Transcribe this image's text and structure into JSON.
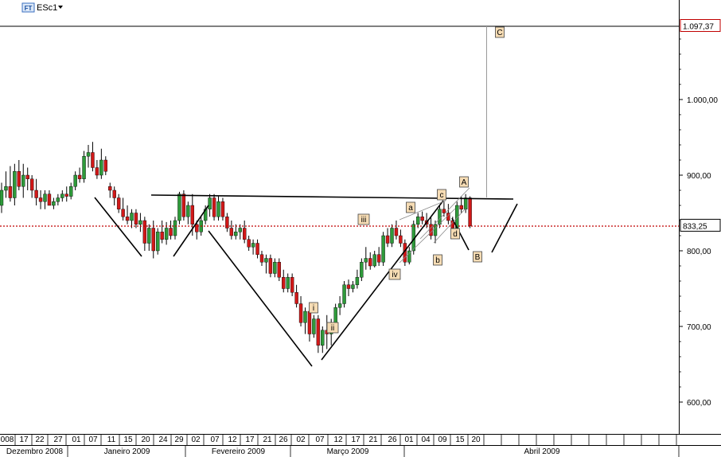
{
  "header": {
    "badge": "FT",
    "symbol": "ESc1",
    "dropdown_icon": "triangle-down-icon"
  },
  "chart_data": {
    "type": "candlestick",
    "title": "ESc1",
    "ylim": [
      560,
      1100
    ],
    "y_ticks": [
      {
        "value": 600,
        "label": "600,00"
      },
      {
        "value": 700,
        "label": "700,00"
      },
      {
        "value": 800,
        "label": "800,00"
      },
      {
        "value": 900,
        "label": "900,00"
      },
      {
        "value": 1000,
        "label": "1.000,00"
      }
    ],
    "x_dates": [
      "008",
      "17",
      "22",
      "27",
      "01",
      "07",
      "11",
      "15",
      "20",
      "24",
      "29",
      "02",
      "07",
      "12",
      "17",
      "21",
      "26",
      "02",
      "07",
      "12",
      "17",
      "21",
      "26",
      "01",
      "04",
      "09",
      "15",
      "20"
    ],
    "x_months": [
      "Dezembro 2008",
      "Janeiro 2009",
      "Fevereiro 2009",
      "Março 2009",
      "Abril 2009"
    ],
    "current_price": {
      "value": 833.25,
      "label": "833,25"
    },
    "target_line": {
      "value": 1097.37,
      "label": "1.097,37"
    },
    "neckline": [
      {
        "i": 42,
        "y": 875
      },
      {
        "i": 141,
        "y": 871
      }
    ],
    "wave_labels": [
      "i",
      "ii",
      "iii",
      "iv",
      "a",
      "b",
      "c",
      "d",
      "A",
      "B",
      "C"
    ],
    "colors": {
      "up": "#2e9a3a",
      "down": "#d11818",
      "wick": "#000000",
      "label_bg": "#f6dcb4",
      "price_line": "#c00000"
    },
    "candles": [
      {
        "o": 860,
        "h": 890,
        "l": 850,
        "c": 880
      },
      {
        "o": 880,
        "h": 905,
        "l": 870,
        "c": 885
      },
      {
        "o": 885,
        "h": 912,
        "l": 865,
        "c": 870
      },
      {
        "o": 870,
        "h": 915,
        "l": 860,
        "c": 905
      },
      {
        "o": 905,
        "h": 920,
        "l": 880,
        "c": 885
      },
      {
        "o": 885,
        "h": 915,
        "l": 870,
        "c": 900
      },
      {
        "o": 900,
        "h": 910,
        "l": 880,
        "c": 895
      },
      {
        "o": 895,
        "h": 900,
        "l": 870,
        "c": 880
      },
      {
        "o": 880,
        "h": 895,
        "l": 860,
        "c": 870
      },
      {
        "o": 870,
        "h": 880,
        "l": 855,
        "c": 865
      },
      {
        "o": 865,
        "h": 880,
        "l": 855,
        "c": 875
      },
      {
        "o": 875,
        "h": 880,
        "l": 860,
        "c": 860
      },
      {
        "o": 860,
        "h": 870,
        "l": 855,
        "c": 865
      },
      {
        "o": 865,
        "h": 875,
        "l": 860,
        "c": 870
      },
      {
        "o": 870,
        "h": 880,
        "l": 865,
        "c": 875
      },
      {
        "o": 875,
        "h": 885,
        "l": 865,
        "c": 872
      },
      {
        "o": 872,
        "h": 890,
        "l": 868,
        "c": 885
      },
      {
        "o": 885,
        "h": 905,
        "l": 880,
        "c": 900
      },
      {
        "o": 900,
        "h": 910,
        "l": 890,
        "c": 895
      },
      {
        "o": 895,
        "h": 932,
        "l": 890,
        "c": 925
      },
      {
        "o": 925,
        "h": 940,
        "l": 910,
        "c": 930
      },
      {
        "o": 930,
        "h": 944,
        "l": 905,
        "c": 910
      },
      {
        "o": 910,
        "h": 920,
        "l": 895,
        "c": 900
      },
      {
        "o": 900,
        "h": 935,
        "l": 895,
        "c": 920
      },
      {
        "o": 920,
        "h": 925,
        "l": 900,
        "c": 905
      },
      {
        "o": 885,
        "h": 890,
        "l": 870,
        "c": 880
      },
      {
        "o": 880,
        "h": 885,
        "l": 860,
        "c": 870
      },
      {
        "o": 870,
        "h": 875,
        "l": 850,
        "c": 855
      },
      {
        "o": 855,
        "h": 870,
        "l": 840,
        "c": 845
      },
      {
        "o": 845,
        "h": 860,
        "l": 835,
        "c": 840
      },
      {
        "o": 840,
        "h": 855,
        "l": 830,
        "c": 850
      },
      {
        "o": 850,
        "h": 855,
        "l": 830,
        "c": 835
      },
      {
        "o": 835,
        "h": 850,
        "l": 825,
        "c": 840
      },
      {
        "o": 840,
        "h": 845,
        "l": 800,
        "c": 810
      },
      {
        "o": 810,
        "h": 835,
        "l": 800,
        "c": 830
      },
      {
        "o": 830,
        "h": 840,
        "l": 790,
        "c": 800
      },
      {
        "o": 800,
        "h": 830,
        "l": 795,
        "c": 825
      },
      {
        "o": 825,
        "h": 840,
        "l": 810,
        "c": 815
      },
      {
        "o": 815,
        "h": 838,
        "l": 808,
        "c": 830
      },
      {
        "o": 830,
        "h": 840,
        "l": 815,
        "c": 820
      },
      {
        "o": 820,
        "h": 845,
        "l": 815,
        "c": 840
      },
      {
        "o": 840,
        "h": 878,
        "l": 835,
        "c": 875
      },
      {
        "o": 875,
        "h": 880,
        "l": 840,
        "c": 845
      },
      {
        "o": 845,
        "h": 865,
        "l": 835,
        "c": 860
      },
      {
        "o": 860,
        "h": 875,
        "l": 820,
        "c": 835
      },
      {
        "o": 835,
        "h": 840,
        "l": 815,
        "c": 825
      },
      {
        "o": 825,
        "h": 845,
        "l": 820,
        "c": 840
      },
      {
        "o": 840,
        "h": 860,
        "l": 835,
        "c": 855
      },
      {
        "o": 855,
        "h": 875,
        "l": 845,
        "c": 870
      },
      {
        "o": 870,
        "h": 875,
        "l": 840,
        "c": 845
      },
      {
        "o": 845,
        "h": 872,
        "l": 840,
        "c": 865
      },
      {
        "o": 865,
        "h": 870,
        "l": 840,
        "c": 845
      },
      {
        "o": 845,
        "h": 850,
        "l": 825,
        "c": 830
      },
      {
        "o": 830,
        "h": 840,
        "l": 815,
        "c": 820
      },
      {
        "o": 820,
        "h": 835,
        "l": 815,
        "c": 825
      },
      {
        "o": 825,
        "h": 835,
        "l": 815,
        "c": 830
      },
      {
        "o": 830,
        "h": 840,
        "l": 810,
        "c": 815
      },
      {
        "o": 815,
        "h": 820,
        "l": 800,
        "c": 805
      },
      {
        "o": 805,
        "h": 815,
        "l": 795,
        "c": 810
      },
      {
        "o": 810,
        "h": 815,
        "l": 790,
        "c": 795
      },
      {
        "o": 795,
        "h": 800,
        "l": 780,
        "c": 785
      },
      {
        "o": 785,
        "h": 795,
        "l": 770,
        "c": 790
      },
      {
        "o": 790,
        "h": 795,
        "l": 765,
        "c": 770
      },
      {
        "o": 770,
        "h": 790,
        "l": 765,
        "c": 785
      },
      {
        "o": 785,
        "h": 790,
        "l": 760,
        "c": 765
      },
      {
        "o": 765,
        "h": 775,
        "l": 745,
        "c": 750
      },
      {
        "o": 750,
        "h": 770,
        "l": 745,
        "c": 765
      },
      {
        "o": 765,
        "h": 770,
        "l": 740,
        "c": 745
      },
      {
        "o": 745,
        "h": 755,
        "l": 725,
        "c": 730
      },
      {
        "o": 730,
        "h": 740,
        "l": 700,
        "c": 705
      },
      {
        "o": 705,
        "h": 725,
        "l": 690,
        "c": 720
      },
      {
        "o": 720,
        "h": 725,
        "l": 680,
        "c": 690
      },
      {
        "o": 690,
        "h": 715,
        "l": 685,
        "c": 710
      },
      {
        "o": 710,
        "h": 715,
        "l": 665,
        "c": 675
      },
      {
        "o": 675,
        "h": 700,
        "l": 665,
        "c": 695
      },
      {
        "o": 695,
        "h": 715,
        "l": 670,
        "c": 690
      },
      {
        "o": 690,
        "h": 710,
        "l": 675,
        "c": 700
      },
      {
        "o": 700,
        "h": 730,
        "l": 695,
        "c": 725
      },
      {
        "o": 725,
        "h": 740,
        "l": 715,
        "c": 730
      },
      {
        "o": 730,
        "h": 760,
        "l": 725,
        "c": 755
      },
      {
        "o": 755,
        "h": 762,
        "l": 740,
        "c": 750
      },
      {
        "o": 750,
        "h": 760,
        "l": 745,
        "c": 755
      },
      {
        "o": 755,
        "h": 775,
        "l": 750,
        "c": 765
      },
      {
        "o": 765,
        "h": 790,
        "l": 760,
        "c": 785
      },
      {
        "o": 785,
        "h": 805,
        "l": 775,
        "c": 790
      },
      {
        "o": 790,
        "h": 798,
        "l": 775,
        "c": 780
      },
      {
        "o": 780,
        "h": 800,
        "l": 778,
        "c": 795
      },
      {
        "o": 795,
        "h": 805,
        "l": 780,
        "c": 785
      },
      {
        "o": 785,
        "h": 825,
        "l": 780,
        "c": 820
      },
      {
        "o": 820,
        "h": 830,
        "l": 805,
        "c": 810
      },
      {
        "o": 810,
        "h": 835,
        "l": 805,
        "c": 830
      },
      {
        "o": 830,
        "h": 840,
        "l": 815,
        "c": 820
      },
      {
        "o": 820,
        "h": 828,
        "l": 805,
        "c": 810
      },
      {
        "o": 810,
        "h": 815,
        "l": 780,
        "c": 785
      },
      {
        "o": 785,
        "h": 805,
        "l": 782,
        "c": 800
      },
      {
        "o": 800,
        "h": 840,
        "l": 795,
        "c": 835
      },
      {
        "o": 835,
        "h": 850,
        "l": 830,
        "c": 845
      },
      {
        "o": 845,
        "h": 852,
        "l": 835,
        "c": 840
      },
      {
        "o": 840,
        "h": 850,
        "l": 830,
        "c": 835
      },
      {
        "o": 835,
        "h": 845,
        "l": 815,
        "c": 820
      },
      {
        "o": 820,
        "h": 840,
        "l": 810,
        "c": 835
      },
      {
        "o": 835,
        "h": 860,
        "l": 830,
        "c": 855
      },
      {
        "o": 855,
        "h": 865,
        "l": 845,
        "c": 850
      },
      {
        "o": 850,
        "h": 862,
        "l": 835,
        "c": 840
      },
      {
        "o": 840,
        "h": 845,
        "l": 825,
        "c": 830
      },
      {
        "o": 830,
        "h": 865,
        "l": 825,
        "c": 860
      },
      {
        "o": 860,
        "h": 872,
        "l": 850,
        "c": 855
      },
      {
        "o": 855,
        "h": 875,
        "l": 850,
        "c": 870
      },
      {
        "o": 870,
        "h": 872,
        "l": 830,
        "c": 833
      }
    ]
  }
}
